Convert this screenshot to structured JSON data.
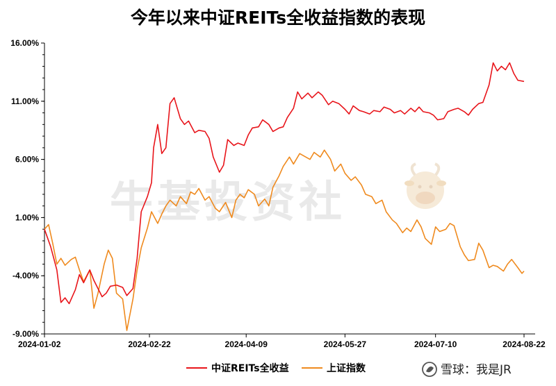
{
  "chart_data": {
    "type": "line",
    "title": "今年以来中证REITs全收益指数的表现",
    "y_tick_labels": [
      "16.00%",
      "11.00%",
      "6.00%",
      "1.00%",
      "-4.00%",
      "-9.00%"
    ],
    "ylim": [
      -9,
      16
    ],
    "x_tick_labels": [
      "2024-01-02",
      "2024-02-22",
      "2024-04-09",
      "2024-05-27",
      "2024-07-10",
      "2024-08-22"
    ],
    "xlim": [
      "2024-01-02",
      "2024-08-22"
    ],
    "grid": false,
    "legend_position": "bottom-center",
    "series": [
      {
        "name": "中证REITs全收益",
        "color": "#e8141a",
        "points": [
          [
            "2024-01-02",
            0.0
          ],
          [
            "2024-01-05",
            -1.5
          ],
          [
            "2024-01-08",
            -3.5
          ],
          [
            "2024-01-10",
            -6.3
          ],
          [
            "2024-01-12",
            -5.9
          ],
          [
            "2024-01-14",
            -6.4
          ],
          [
            "2024-01-17",
            -5.2
          ],
          [
            "2024-01-19",
            -3.9
          ],
          [
            "2024-01-21",
            -4.6
          ],
          [
            "2024-01-24",
            -3.5
          ],
          [
            "2024-01-26",
            -4.4
          ],
          [
            "2024-01-30",
            -5.8
          ],
          [
            "2024-02-01",
            -5.5
          ],
          [
            "2024-02-03",
            -4.9
          ],
          [
            "2024-02-06",
            -4.8
          ],
          [
            "2024-02-09",
            -5.0
          ],
          [
            "2024-02-11",
            -5.7
          ],
          [
            "2024-02-14",
            -5.1
          ],
          [
            "2024-02-16",
            -2.5
          ],
          [
            "2024-02-18",
            1.5
          ],
          [
            "2024-02-21",
            2.8
          ],
          [
            "2024-02-23",
            4.0
          ],
          [
            "2024-02-24",
            7.0
          ],
          [
            "2024-02-26",
            9.0
          ],
          [
            "2024-02-28",
            6.5
          ],
          [
            "2024-03-01",
            7.0
          ],
          [
            "2024-03-03",
            10.8
          ],
          [
            "2024-03-05",
            11.3
          ],
          [
            "2024-03-08",
            9.5
          ],
          [
            "2024-03-10",
            9.0
          ],
          [
            "2024-03-12",
            9.3
          ],
          [
            "2024-03-15",
            8.3
          ],
          [
            "2024-03-17",
            8.5
          ],
          [
            "2024-03-20",
            8.4
          ],
          [
            "2024-03-22",
            7.8
          ],
          [
            "2024-03-24",
            6.2
          ],
          [
            "2024-03-27",
            4.9
          ],
          [
            "2024-03-29",
            5.5
          ],
          [
            "2024-03-31",
            7.7
          ],
          [
            "2024-04-03",
            7.2
          ],
          [
            "2024-04-05",
            7.4
          ],
          [
            "2024-04-08",
            7.2
          ],
          [
            "2024-04-10",
            8.1
          ],
          [
            "2024-04-12",
            8.7
          ],
          [
            "2024-04-15",
            8.8
          ],
          [
            "2024-04-17",
            9.4
          ],
          [
            "2024-04-20",
            9.0
          ],
          [
            "2024-04-22",
            8.4
          ],
          [
            "2024-04-25",
            8.7
          ],
          [
            "2024-04-27",
            8.8
          ],
          [
            "2024-04-29",
            9.6
          ],
          [
            "2024-05-02",
            10.4
          ],
          [
            "2024-05-04",
            11.8
          ],
          [
            "2024-05-06",
            11.2
          ],
          [
            "2024-05-09",
            11.7
          ],
          [
            "2024-05-11",
            11.3
          ],
          [
            "2024-05-14",
            11.8
          ],
          [
            "2024-05-16",
            11.5
          ],
          [
            "2024-05-19",
            10.7
          ],
          [
            "2024-05-21",
            11.0
          ],
          [
            "2024-05-24",
            10.8
          ],
          [
            "2024-05-27",
            10.3
          ],
          [
            "2024-05-29",
            9.9
          ],
          [
            "2024-05-31",
            10.6
          ],
          [
            "2024-06-03",
            10.2
          ],
          [
            "2024-06-05",
            10.1
          ],
          [
            "2024-06-08",
            9.9
          ],
          [
            "2024-06-10",
            10.2
          ],
          [
            "2024-06-13",
            10.1
          ],
          [
            "2024-06-15",
            10.5
          ],
          [
            "2024-06-18",
            10.3
          ],
          [
            "2024-06-20",
            10.0
          ],
          [
            "2024-06-23",
            10.2
          ],
          [
            "2024-06-25",
            9.9
          ],
          [
            "2024-06-28",
            10.4
          ],
          [
            "2024-06-30",
            10.1
          ],
          [
            "2024-07-02",
            10.5
          ],
          [
            "2024-07-04",
            10.1
          ],
          [
            "2024-07-07",
            10.0
          ],
          [
            "2024-07-09",
            9.8
          ],
          [
            "2024-07-11",
            9.4
          ],
          [
            "2024-07-14",
            9.5
          ],
          [
            "2024-07-16",
            10.1
          ],
          [
            "2024-07-19",
            10.3
          ],
          [
            "2024-07-21",
            10.4
          ],
          [
            "2024-07-24",
            10.1
          ],
          [
            "2024-07-26",
            9.8
          ],
          [
            "2024-07-28",
            10.3
          ],
          [
            "2024-07-31",
            10.8
          ],
          [
            "2024-08-02",
            10.9
          ],
          [
            "2024-08-05",
            12.4
          ],
          [
            "2024-08-07",
            14.3
          ],
          [
            "2024-08-09",
            13.6
          ],
          [
            "2024-08-11",
            14.0
          ],
          [
            "2024-08-13",
            13.7
          ],
          [
            "2024-08-15",
            14.3
          ],
          [
            "2024-08-17",
            13.4
          ],
          [
            "2024-08-19",
            12.8
          ],
          [
            "2024-08-22",
            12.7
          ]
        ]
      },
      {
        "name": "上证指数",
        "color": "#ef8a1e",
        "points": [
          [
            "2024-01-02",
            0.0
          ],
          [
            "2024-01-04",
            0.4
          ],
          [
            "2024-01-06",
            -1.2
          ],
          [
            "2024-01-08",
            -3.0
          ],
          [
            "2024-01-10",
            -2.5
          ],
          [
            "2024-01-12",
            -3.1
          ],
          [
            "2024-01-15",
            -2.6
          ],
          [
            "2024-01-17",
            -2.4
          ],
          [
            "2024-01-19",
            -3.5
          ],
          [
            "2024-01-21",
            -4.5
          ],
          [
            "2024-01-24",
            -3.5
          ],
          [
            "2024-01-26",
            -6.8
          ],
          [
            "2024-01-28",
            -5.5
          ],
          [
            "2024-01-31",
            -3.0
          ],
          [
            "2024-02-02",
            -1.8
          ],
          [
            "2024-02-04",
            -2.5
          ],
          [
            "2024-02-06",
            -5.5
          ],
          [
            "2024-02-09",
            -6.0
          ],
          [
            "2024-02-11",
            -8.7
          ],
          [
            "2024-02-14",
            -6.0
          ],
          [
            "2024-02-16",
            -3.5
          ],
          [
            "2024-02-18",
            -1.6
          ],
          [
            "2024-02-21",
            0.1
          ],
          [
            "2024-02-23",
            1.5
          ],
          [
            "2024-02-26",
            0.5
          ],
          [
            "2024-02-28",
            1.3
          ],
          [
            "2024-03-01",
            2.0
          ],
          [
            "2024-03-03",
            2.5
          ],
          [
            "2024-03-06",
            2.0
          ],
          [
            "2024-03-08",
            2.8
          ],
          [
            "2024-03-11",
            2.2
          ],
          [
            "2024-03-13",
            3.2
          ],
          [
            "2024-03-15",
            3.0
          ],
          [
            "2024-03-17",
            3.5
          ],
          [
            "2024-03-20",
            2.5
          ],
          [
            "2024-03-22",
            2.8
          ],
          [
            "2024-03-25",
            1.8
          ],
          [
            "2024-03-27",
            1.5
          ],
          [
            "2024-03-30",
            2.3
          ],
          [
            "2024-04-02",
            1.0
          ],
          [
            "2024-04-04",
            2.5
          ],
          [
            "2024-04-06",
            3.0
          ],
          [
            "2024-04-08",
            2.7
          ],
          [
            "2024-04-10",
            3.4
          ],
          [
            "2024-04-13",
            3.0
          ],
          [
            "2024-04-15",
            2.0
          ],
          [
            "2024-04-18",
            2.6
          ],
          [
            "2024-04-20",
            2.0
          ],
          [
            "2024-04-22",
            3.6
          ],
          [
            "2024-04-25",
            4.6
          ],
          [
            "2024-04-27",
            5.4
          ],
          [
            "2024-04-30",
            6.2
          ],
          [
            "2024-05-02",
            5.6
          ],
          [
            "2024-05-05",
            6.5
          ],
          [
            "2024-05-07",
            6.3
          ],
          [
            "2024-05-10",
            6.0
          ],
          [
            "2024-05-12",
            6.6
          ],
          [
            "2024-05-15",
            6.2
          ],
          [
            "2024-05-17",
            6.8
          ],
          [
            "2024-05-20",
            6.0
          ],
          [
            "2024-05-22",
            5.0
          ],
          [
            "2024-05-25",
            5.6
          ],
          [
            "2024-05-27",
            4.8
          ],
          [
            "2024-05-30",
            4.2
          ],
          [
            "2024-06-01",
            4.5
          ],
          [
            "2024-06-04",
            3.8
          ],
          [
            "2024-06-06",
            3.0
          ],
          [
            "2024-06-09",
            2.8
          ],
          [
            "2024-06-11",
            2.2
          ],
          [
            "2024-06-14",
            2.5
          ],
          [
            "2024-06-16",
            1.5
          ],
          [
            "2024-06-19",
            0.8
          ],
          [
            "2024-06-21",
            0.5
          ],
          [
            "2024-06-24",
            -0.3
          ],
          [
            "2024-06-26",
            0.1
          ],
          [
            "2024-06-28",
            -0.2
          ],
          [
            "2024-07-01",
            0.8
          ],
          [
            "2024-07-03",
            0.2
          ],
          [
            "2024-07-05",
            -0.8
          ],
          [
            "2024-07-08",
            -1.3
          ],
          [
            "2024-07-10",
            0.2
          ],
          [
            "2024-07-12",
            -0.2
          ],
          [
            "2024-07-15",
            0.0
          ],
          [
            "2024-07-17",
            0.5
          ],
          [
            "2024-07-19",
            0.3
          ],
          [
            "2024-07-22",
            -1.5
          ],
          [
            "2024-07-24",
            -2.2
          ],
          [
            "2024-07-26",
            -2.7
          ],
          [
            "2024-07-29",
            -2.6
          ],
          [
            "2024-07-31",
            -1.2
          ],
          [
            "2024-08-02",
            -1.8
          ],
          [
            "2024-08-05",
            -3.3
          ],
          [
            "2024-08-07",
            -3.1
          ],
          [
            "2024-08-09",
            -3.2
          ],
          [
            "2024-08-12",
            -3.6
          ],
          [
            "2024-08-14",
            -3.0
          ],
          [
            "2024-08-16",
            -2.6
          ],
          [
            "2024-08-19",
            -3.3
          ],
          [
            "2024-08-21",
            -3.8
          ],
          [
            "2024-08-22",
            -3.6
          ]
        ]
      }
    ]
  },
  "watermark": "牛基投资社",
  "footer_credit": "雪球：我是JR"
}
